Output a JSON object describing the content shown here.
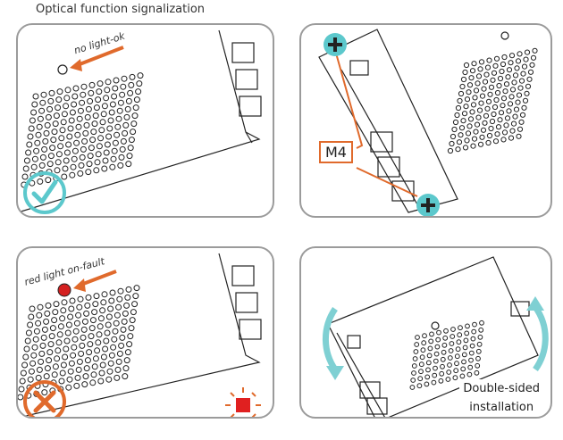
{
  "header": {
    "title": "Optical function signalization"
  },
  "panels": {
    "no_light": {
      "label": "no light-ok",
      "check_color": "#5cc8cc",
      "arrow_color": "#e06a2c"
    },
    "mounting": {
      "screw_label": "M4",
      "wire_color": "#e06a2c",
      "screw_color": "#5cc8cc"
    },
    "red_light": {
      "label": "red light on-fault",
      "cross_color": "#e06a2c",
      "led_color": "#d42020"
    },
    "installation": {
      "caption_line1": "Double-sided",
      "caption_line2": "installation",
      "arrow_color": "#7fd0d3"
    }
  }
}
